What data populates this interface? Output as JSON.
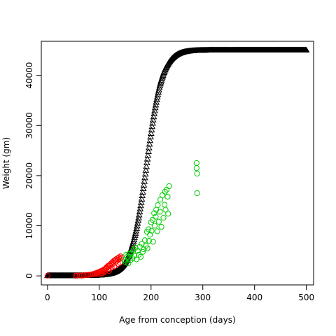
{
  "chart_data": {
    "type": "scatter",
    "title": "",
    "xlabel": "Age from conception (days)",
    "ylabel": "Weight (gm)",
    "xlim": [
      -12,
      514
    ],
    "ylim": [
      -1800,
      46800
    ],
    "x_ticks": [
      0,
      100,
      200,
      300,
      400,
      500
    ],
    "x_tick_labels": [
      "0",
      "100",
      "200",
      "300",
      "400",
      "500"
    ],
    "y_ticks": [
      0,
      10000,
      20000,
      30000,
      40000
    ],
    "y_tick_labels": [
      "0",
      "10000",
      "20000",
      "30000",
      "40000"
    ],
    "grid": false,
    "legend": "none",
    "marker": "open-circle",
    "series": [
      {
        "color": "#000000",
        "marker": "open-triangle",
        "curve": {
          "form": "logistic",
          "asymptote": 45000,
          "midpoint": 192,
          "scale": 15,
          "x_range": [
            0,
            500
          ],
          "count": 501
        }
      },
      {
        "color": "#ff0000",
        "points": [
          [
            0,
            50
          ],
          [
            54,
            30
          ],
          [
            57,
            60
          ],
          [
            62,
            80
          ],
          [
            66,
            60
          ],
          [
            70,
            120
          ],
          [
            75,
            150
          ],
          [
            78,
            200
          ],
          [
            82,
            250
          ],
          [
            85,
            300
          ],
          [
            88,
            350
          ],
          [
            90,
            420
          ],
          [
            92,
            500
          ],
          [
            95,
            560
          ],
          [
            96,
            650
          ],
          [
            98,
            700
          ],
          [
            100,
            780
          ],
          [
            101,
            820
          ],
          [
            102,
            900
          ],
          [
            104,
            1000
          ],
          [
            105,
            950
          ],
          [
            106,
            1100
          ],
          [
            108,
            1200
          ],
          [
            110,
            1300
          ],
          [
            112,
            1450
          ],
          [
            113,
            1600
          ],
          [
            114,
            1500
          ],
          [
            115,
            1800
          ],
          [
            117,
            2000
          ],
          [
            118,
            1400
          ],
          [
            120,
            2200
          ],
          [
            121,
            2000
          ],
          [
            122,
            2400
          ],
          [
            124,
            2600
          ],
          [
            125,
            2300
          ],
          [
            126,
            2800
          ],
          [
            128,
            3000
          ],
          [
            130,
            3100
          ],
          [
            132,
            3300
          ],
          [
            133,
            2900
          ],
          [
            135,
            3500
          ],
          [
            136,
            2400
          ],
          [
            137,
            3200
          ],
          [
            138,
            3700
          ],
          [
            139,
            3400
          ],
          [
            140,
            2600
          ],
          [
            141,
            3900
          ],
          [
            142,
            3600
          ],
          [
            106,
            500
          ],
          [
            109,
            700
          ],
          [
            111,
            900
          ],
          [
            119,
            1000
          ],
          [
            124,
            1700
          ],
          [
            129,
            1900
          ],
          [
            96,
            300
          ],
          [
            103,
            500
          ]
        ]
      },
      {
        "color": "#00cd00",
        "points": [
          [
            148,
            3200
          ],
          [
            150,
            2800
          ],
          [
            152,
            4200
          ],
          [
            154,
            3800
          ],
          [
            156,
            2500
          ],
          [
            158,
            4400
          ],
          [
            160,
            3100
          ],
          [
            162,
            4600
          ],
          [
            164,
            3500
          ],
          [
            166,
            5200
          ],
          [
            168,
            4000
          ],
          [
            170,
            5600
          ],
          [
            172,
            3300
          ],
          [
            174,
            5000
          ],
          [
            176,
            4200
          ],
          [
            178,
            5800
          ],
          [
            180,
            3800
          ],
          [
            182,
            6400
          ],
          [
            184,
            4800
          ],
          [
            186,
            5300
          ],
          [
            188,
            7100
          ],
          [
            190,
            6000
          ],
          [
            192,
            8800
          ],
          [
            193,
            5500
          ],
          [
            195,
            9300
          ],
          [
            196,
            7000
          ],
          [
            198,
            8200
          ],
          [
            200,
            10700
          ],
          [
            201,
            9000
          ],
          [
            203,
            11200
          ],
          [
            204,
            6800
          ],
          [
            206,
            12500
          ],
          [
            207,
            10000
          ],
          [
            209,
            11800
          ],
          [
            210,
            13200
          ],
          [
            212,
            8900
          ],
          [
            213,
            14100
          ],
          [
            215,
            10800
          ],
          [
            217,
            12800
          ],
          [
            218,
            15200
          ],
          [
            220,
            9800
          ],
          [
            222,
            16100
          ],
          [
            224,
            11600
          ],
          [
            226,
            14200
          ],
          [
            227,
            16800
          ],
          [
            228,
            13200
          ],
          [
            230,
            17200
          ],
          [
            232,
            15800
          ],
          [
            233,
            12400
          ],
          [
            235,
            17900
          ],
          [
            288,
            22500
          ],
          [
            288,
            21500
          ],
          [
            289,
            20400
          ],
          [
            289,
            16500
          ]
        ]
      }
    ]
  }
}
